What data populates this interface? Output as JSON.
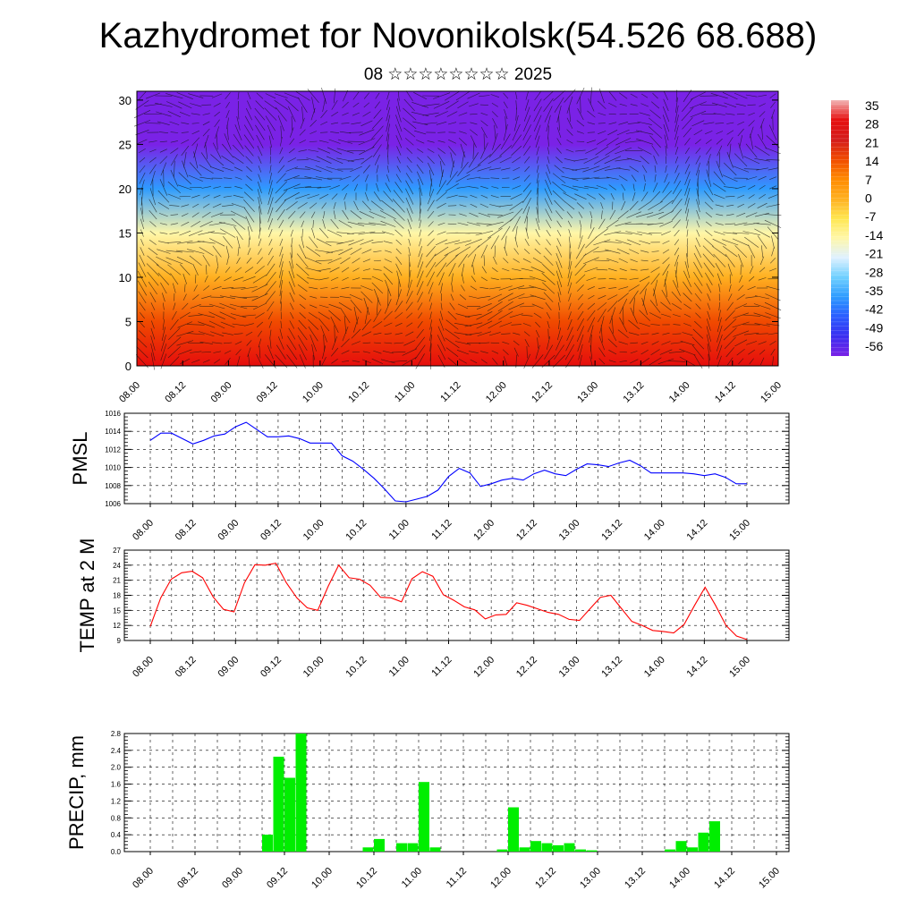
{
  "title": "Kazhydromet for Novonikolsk(54.526 68.688)",
  "subtitle": "08 ☆☆☆☆☆☆☆☆ 2025",
  "chart_data": [
    {
      "type": "heatmap",
      "title": "",
      "xlabel": "",
      "ylabel": "",
      "x_tick_labels": [
        "08.00",
        "08.12",
        "09.00",
        "09.12",
        "10.00",
        "10.12",
        "11.00",
        "11.12",
        "12.00",
        "12.12",
        "13.00",
        "13.12",
        "14.00",
        "14.12",
        "15.00"
      ],
      "y_ticks": [
        0,
        5,
        10,
        15,
        20,
        25,
        30
      ],
      "ylim": [
        0,
        31
      ],
      "colorbar_labels": [
        "35",
        "28",
        "21",
        "14",
        "7",
        "0",
        "-7",
        "-14",
        "-21",
        "-28",
        "-35",
        "-42",
        "-49",
        "-56"
      ],
      "colorbar_colors": [
        "#f2b4b4",
        "#e60d0d",
        "#d41c1c",
        "#f04a00",
        "#ff8a00",
        "#ffb020",
        "#ffe650",
        "#fff7a8",
        "#dff1ff",
        "#6fd0ff",
        "#2e9bff",
        "#2a5cff",
        "#3a2ef0",
        "#7a22e6"
      ],
      "bands": [
        {
          "y": 0,
          "temp": 28
        },
        {
          "y": 5,
          "temp": 18
        },
        {
          "y": 10,
          "temp": 6
        },
        {
          "y": 15,
          "temp": -8
        },
        {
          "y": 20,
          "temp": -35
        },
        {
          "y": 25,
          "temp": -56
        },
        {
          "y": 31,
          "temp": -56
        }
      ],
      "wind_vectors": true
    },
    {
      "type": "line",
      "ylabel": "PMSL",
      "ylim": [
        1006,
        1016
      ],
      "y_ticks": [
        1006,
        1008,
        1010,
        1012,
        1014,
        1016
      ],
      "x_tick_labels": [
        "08.00",
        "08.12",
        "09.00",
        "09.12",
        "10.00",
        "10.12",
        "11.00",
        "11.12",
        "12.00",
        "12.12",
        "13.00",
        "13.12",
        "14.00",
        "14.12",
        "15.00"
      ],
      "grid": true,
      "color": "#0000ff",
      "values": [
        1013,
        1013.8,
        1013.8,
        1013.2,
        1012.6,
        1013,
        1013.5,
        1013.7,
        1014.5,
        1015,
        1014.2,
        1013.4,
        1013.4,
        1013.5,
        1013.2,
        1012.7,
        1012.7,
        1012.7,
        1011.3,
        1010.7,
        1009.8,
        1008.8,
        1007.6,
        1006.3,
        1006.2,
        1006.5,
        1006.8,
        1007.5,
        1009,
        1009.9,
        1009.4,
        1007.9,
        1008.2,
        1008.6,
        1008.8,
        1008.6,
        1009.3,
        1009.7,
        1009.3,
        1009.1,
        1009.8,
        1010.4,
        1010.3,
        1010.1,
        1010.5,
        1010.8,
        1010.2,
        1009.4,
        1009.4,
        1009.4,
        1009.4,
        1009.3,
        1009.1,
        1009.3,
        1008.9,
        1008.2,
        1008.2
      ]
    },
    {
      "type": "line",
      "ylabel": "TEMP at 2 M",
      "ylim": [
        9,
        27
      ],
      "y_ticks": [
        9,
        12,
        15,
        18,
        21,
        24,
        27
      ],
      "x_tick_labels": [
        "08.00",
        "08.12",
        "09.00",
        "09.12",
        "10.00",
        "10.12",
        "11.00",
        "11.12",
        "12.00",
        "12.12",
        "13.00",
        "13.12",
        "14.00",
        "14.12",
        "15.00"
      ],
      "grid": true,
      "color": "#ff0000",
      "values": [
        11.8,
        17.5,
        21.2,
        22.5,
        22.8,
        21.5,
        17.7,
        15.2,
        14.7,
        20.5,
        24.1,
        24,
        24.4,
        20.5,
        17.5,
        15.5,
        15,
        19.8,
        24,
        21.5,
        21.2,
        20,
        17.6,
        17.5,
        16.7,
        21.3,
        22.7,
        21.8,
        18.1,
        17,
        15.7,
        15.1,
        13.3,
        14.1,
        14.2,
        16.5,
        16,
        15.3,
        14.6,
        14.2,
        13.2,
        13,
        15.3,
        17.6,
        18,
        15.4,
        12.8,
        12,
        11,
        10.8,
        10.5,
        12.2,
        16,
        19.6,
        16,
        12,
        9.9,
        9.2
      ]
    },
    {
      "type": "bar",
      "ylabel": "PRECIP, mm",
      "ylim": [
        0,
        2.8
      ],
      "y_ticks": [
        0.0,
        0.4,
        0.8,
        1.2,
        1.6,
        2.0,
        2.4,
        2.8
      ],
      "y_tick_labels": [
        "0.0",
        "0.4",
        "0.8",
        "1.2",
        "1.6",
        "2.0",
        "2.4",
        "2.8"
      ],
      "x_tick_labels": [
        "08.00",
        "08.12",
        "09.00",
        "09.12",
        "10.00",
        "10.12",
        "11.00",
        "11.12",
        "12.00",
        "12.12",
        "13.00",
        "13.12",
        "14.00",
        "14.12",
        "15.00"
      ],
      "grid": true,
      "color": "#00ee00",
      "values": [
        0,
        0,
        0,
        0,
        0,
        0,
        0,
        0,
        0,
        0,
        0.4,
        2.25,
        1.75,
        2.8,
        0,
        0,
        0,
        0,
        0,
        0.1,
        0.3,
        0,
        0.2,
        0.2,
        1.65,
        0.1,
        0,
        0,
        0,
        0,
        0,
        0.05,
        1.05,
        0.1,
        0.25,
        0.2,
        0.15,
        0.2,
        0.05,
        0.03,
        0,
        0,
        0,
        0,
        0,
        0,
        0.05,
        0.25,
        0.1,
        0.45,
        0.72,
        0,
        0,
        0,
        0,
        0,
        0
      ]
    }
  ]
}
